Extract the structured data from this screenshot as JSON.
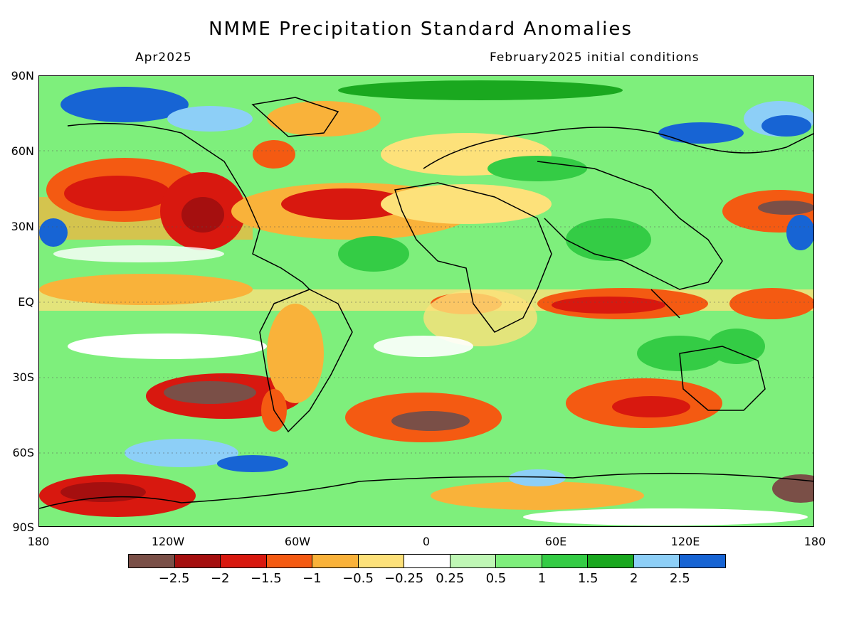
{
  "title": "NMME Precipitation Standard Anomalies",
  "subtitle_left": "Apr2025",
  "subtitle_right": "February2025 initial conditions",
  "map": {
    "projection": "equirectangular",
    "lat_labels": [
      "90N",
      "60N",
      "30N",
      "EQ",
      "30S",
      "60S",
      "90S"
    ],
    "lon_labels": [
      "180",
      "120W",
      "60W",
      "0",
      "60E",
      "120E",
      "180"
    ]
  },
  "colorbar": {
    "colors": [
      "#7a4f47",
      "#a50f0f",
      "#d8180f",
      "#f45a12",
      "#f9b23a",
      "#fde17a",
      "#ffffff",
      "#bff7b5",
      "#7eef7c",
      "#34cc45",
      "#1aa81f",
      "#8dcff7",
      "#1764d4"
    ],
    "labels": [
      "−2.5",
      "−2",
      "−1.5",
      "−1",
      "−0.5",
      "−0.25",
      "0.25",
      "0.5",
      "1",
      "1.5",
      "2",
      "2.5"
    ]
  }
}
